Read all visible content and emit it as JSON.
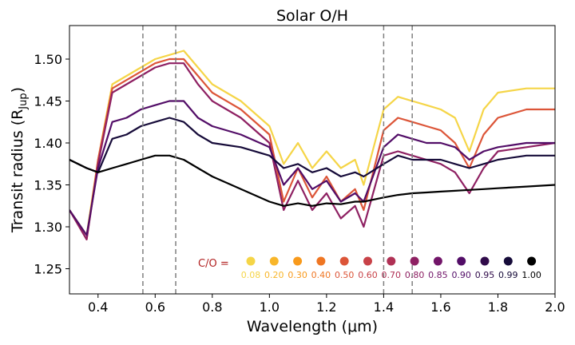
{
  "chart_data": {
    "type": "line",
    "title": "Solar O/H",
    "xlabel": "Wavelength (μm)",
    "ylabel_main": "Transit radius (R",
    "ylabel_sub": "Jup",
    "ylabel_close": ")",
    "xlim": [
      0.3,
      2.0
    ],
    "ylim": [
      1.22,
      1.54
    ],
    "xticks": [
      0.4,
      0.6,
      0.8,
      1.0,
      1.2,
      1.4,
      1.6,
      1.8,
      2.0
    ],
    "xtick_labels": [
      "0.4",
      "0.6",
      "0.8",
      "1.0",
      "1.2",
      "1.4",
      "1.6",
      "1.8",
      "2.0"
    ],
    "yticks": [
      1.25,
      1.3,
      1.35,
      1.4,
      1.45,
      1.5
    ],
    "ytick_labels": [
      "1.25",
      "1.30",
      "1.35",
      "1.40",
      "1.45",
      "1.50"
    ],
    "vlines": [
      0.557,
      0.672,
      1.4,
      1.5
    ],
    "legend_title": "C/O =",
    "legend": [
      {
        "label": "0.08",
        "color": "#f5d547"
      },
      {
        "label": "0.20",
        "color": "#f8b62a"
      },
      {
        "label": "0.30",
        "color": "#f89a1c"
      },
      {
        "label": "0.40",
        "color": "#ef7623"
      },
      {
        "label": "0.50",
        "color": "#dc5538"
      },
      {
        "label": "0.60",
        "color": "#c84248"
      },
      {
        "label": "0.70",
        "color": "#b03155"
      },
      {
        "label": "0.80",
        "color": "#8e2062"
      },
      {
        "label": "0.85",
        "color": "#721569"
      },
      {
        "label": "0.90",
        "color": "#520d67"
      },
      {
        "label": "0.95",
        "color": "#300b4a"
      },
      {
        "label": "0.99",
        "color": "#160b39"
      },
      {
        "label": "1.00",
        "color": "#000000"
      }
    ],
    "series": [
      {
        "name": "0.08",
        "color": "#f5d547",
        "x": [
          0.3,
          0.36,
          0.4,
          0.45,
          0.5,
          0.55,
          0.6,
          0.65,
          0.7,
          0.75,
          0.8,
          0.9,
          1.0,
          1.05,
          1.1,
          1.15,
          1.2,
          1.25,
          1.3,
          1.33,
          1.4,
          1.45,
          1.5,
          1.55,
          1.6,
          1.65,
          1.7,
          1.75,
          1.8,
          1.9,
          2.0
        ],
        "y": [
          1.32,
          1.29,
          1.38,
          1.47,
          1.48,
          1.49,
          1.5,
          1.505,
          1.51,
          1.49,
          1.47,
          1.45,
          1.42,
          1.375,
          1.4,
          1.37,
          1.39,
          1.37,
          1.38,
          1.35,
          1.44,
          1.455,
          1.45,
          1.445,
          1.44,
          1.43,
          1.39,
          1.44,
          1.46,
          1.465,
          1.465
        ]
      },
      {
        "name": "0.50",
        "color": "#dc5538",
        "x": [
          0.3,
          0.36,
          0.4,
          0.45,
          0.5,
          0.55,
          0.6,
          0.65,
          0.7,
          0.75,
          0.8,
          0.9,
          1.0,
          1.05,
          1.1,
          1.15,
          1.2,
          1.25,
          1.3,
          1.33,
          1.4,
          1.45,
          1.5,
          1.55,
          1.6,
          1.65,
          1.7,
          1.75,
          1.8,
          1.9,
          2.0
        ],
        "y": [
          1.32,
          1.285,
          1.38,
          1.465,
          1.475,
          1.485,
          1.495,
          1.5,
          1.5,
          1.48,
          1.46,
          1.44,
          1.41,
          1.33,
          1.37,
          1.335,
          1.36,
          1.33,
          1.345,
          1.32,
          1.415,
          1.43,
          1.425,
          1.42,
          1.415,
          1.4,
          1.37,
          1.41,
          1.43,
          1.44,
          1.44
        ]
      },
      {
        "name": "0.80",
        "color": "#8e2062",
        "x": [
          0.3,
          0.36,
          0.4,
          0.45,
          0.5,
          0.55,
          0.6,
          0.65,
          0.7,
          0.75,
          0.8,
          0.9,
          1.0,
          1.05,
          1.1,
          1.15,
          1.2,
          1.25,
          1.3,
          1.33,
          1.4,
          1.45,
          1.5,
          1.55,
          1.6,
          1.65,
          1.7,
          1.75,
          1.8,
          1.9,
          2.0
        ],
        "y": [
          1.32,
          1.285,
          1.375,
          1.46,
          1.47,
          1.48,
          1.49,
          1.495,
          1.495,
          1.47,
          1.45,
          1.43,
          1.4,
          1.32,
          1.355,
          1.32,
          1.34,
          1.31,
          1.325,
          1.3,
          1.385,
          1.39,
          1.385,
          1.38,
          1.375,
          1.365,
          1.34,
          1.37,
          1.39,
          1.395,
          1.4
        ]
      },
      {
        "name": "0.90",
        "color": "#520d67",
        "x": [
          0.3,
          0.36,
          0.4,
          0.45,
          0.5,
          0.55,
          0.6,
          0.65,
          0.7,
          0.75,
          0.8,
          0.9,
          1.0,
          1.05,
          1.1,
          1.15,
          1.2,
          1.25,
          1.3,
          1.33,
          1.4,
          1.45,
          1.5,
          1.55,
          1.6,
          1.65,
          1.7,
          1.75,
          1.8,
          1.9,
          2.0
        ],
        "y": [
          1.32,
          1.29,
          1.37,
          1.425,
          1.43,
          1.44,
          1.445,
          1.45,
          1.45,
          1.43,
          1.42,
          1.41,
          1.395,
          1.35,
          1.37,
          1.345,
          1.355,
          1.33,
          1.34,
          1.33,
          1.395,
          1.41,
          1.405,
          1.4,
          1.4,
          1.395,
          1.38,
          1.39,
          1.395,
          1.4,
          1.4
        ]
      },
      {
        "name": "0.99",
        "color": "#160b39",
        "x": [
          0.3,
          0.36,
          0.4,
          0.45,
          0.5,
          0.55,
          0.6,
          0.65,
          0.7,
          0.75,
          0.8,
          0.9,
          1.0,
          1.05,
          1.1,
          1.15,
          1.2,
          1.25,
          1.3,
          1.33,
          1.4,
          1.45,
          1.5,
          1.55,
          1.6,
          1.65,
          1.7,
          1.75,
          1.8,
          1.9,
          2.0
        ],
        "y": [
          1.38,
          1.37,
          1.365,
          1.405,
          1.41,
          1.42,
          1.425,
          1.43,
          1.425,
          1.41,
          1.4,
          1.395,
          1.385,
          1.37,
          1.375,
          1.365,
          1.37,
          1.36,
          1.365,
          1.36,
          1.375,
          1.385,
          1.38,
          1.38,
          1.38,
          1.375,
          1.37,
          1.375,
          1.38,
          1.385,
          1.385
        ]
      },
      {
        "name": "1.00",
        "color": "#000000",
        "x": [
          0.3,
          0.36,
          0.4,
          0.45,
          0.5,
          0.55,
          0.6,
          0.65,
          0.7,
          0.75,
          0.8,
          0.9,
          1.0,
          1.05,
          1.1,
          1.15,
          1.2,
          1.25,
          1.3,
          1.33,
          1.4,
          1.45,
          1.5,
          1.55,
          1.6,
          1.65,
          1.7,
          1.75,
          1.8,
          1.9,
          2.0
        ],
        "y": [
          1.38,
          1.37,
          1.365,
          1.37,
          1.375,
          1.38,
          1.385,
          1.385,
          1.38,
          1.37,
          1.36,
          1.345,
          1.33,
          1.325,
          1.328,
          1.325,
          1.328,
          1.327,
          1.33,
          1.33,
          1.335,
          1.338,
          1.34,
          1.341,
          1.342,
          1.343,
          1.344,
          1.345,
          1.346,
          1.348,
          1.35
        ]
      }
    ]
  }
}
